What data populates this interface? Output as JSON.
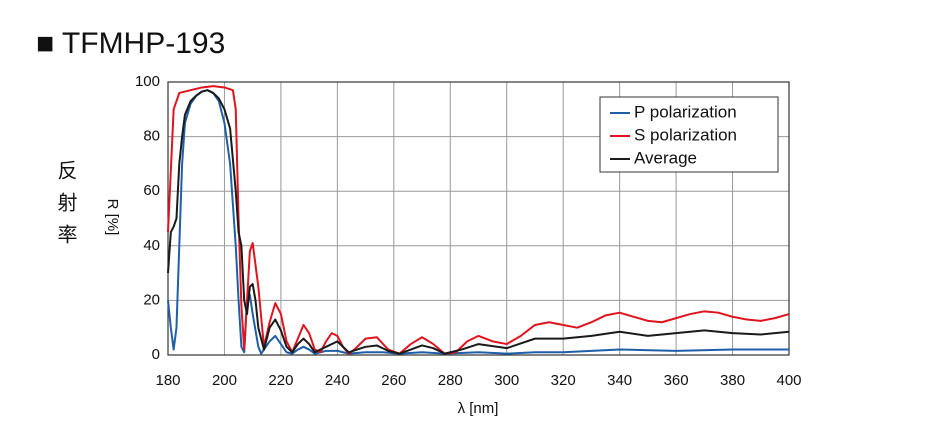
{
  "chart_data": {
    "type": "line",
    "title": "■ TFMHP-193",
    "y_side_label": "反射率",
    "ylabel": "R [%]",
    "xlabel": "λ [nm]",
    "xlim": [
      180,
      400
    ],
    "xticks": [
      180,
      200,
      220,
      240,
      260,
      280,
      300,
      320,
      340,
      360,
      380,
      400
    ],
    "ylim": [
      0,
      100
    ],
    "yticks": [
      0,
      20,
      40,
      60,
      80,
      100
    ],
    "grid": true,
    "legend": "upper right",
    "series": [
      {
        "name": "P polarization",
        "color": "#1f5fa8",
        "x": [
          180,
          181,
          182,
          183,
          184,
          185,
          186,
          188,
          190,
          192,
          194,
          196,
          198,
          200,
          202,
          204,
          205,
          206,
          207,
          208,
          209,
          210,
          212,
          213,
          216,
          218,
          220,
          222,
          224,
          226,
          228,
          230,
          232,
          236,
          240,
          244,
          250,
          256,
          262,
          270,
          278,
          290,
          300,
          310,
          320,
          340,
          360,
          380,
          400
        ],
        "values": [
          20,
          10,
          2,
          10,
          40,
          70,
          85,
          92,
          95,
          96.5,
          97,
          96,
          93,
          85,
          70,
          40,
          20,
          3,
          1,
          20,
          22,
          15,
          3,
          0.5,
          5,
          7,
          4,
          1,
          0.5,
          2,
          3,
          2,
          0.5,
          1.5,
          1.5,
          0.5,
          1,
          1,
          0.5,
          1,
          0.5,
          1,
          0.5,
          1,
          1,
          2,
          1.5,
          2,
          2
        ]
      },
      {
        "name": "S polarization",
        "color": "#e0141e",
        "x": [
          180,
          182,
          184,
          188,
          192,
          196,
          200,
          203,
          204,
          205,
          206,
          207,
          208,
          209,
          210,
          212,
          214,
          216,
          218,
          220,
          222,
          224,
          226,
          228,
          230,
          232,
          234,
          236,
          238,
          240,
          242,
          244,
          246,
          250,
          254,
          258,
          262,
          266,
          270,
          274,
          278,
          282,
          286,
          290,
          295,
          300,
          305,
          310,
          315,
          320,
          325,
          330,
          335,
          340,
          345,
          350,
          355,
          360,
          365,
          370,
          375,
          380,
          385,
          390,
          395,
          400
        ],
        "values": [
          45,
          90,
          96,
          97,
          98,
          98.5,
          98,
          97,
          90,
          50,
          18,
          2,
          20,
          38,
          41,
          25,
          3,
          12,
          19,
          15,
          5,
          1,
          6,
          11,
          8,
          2,
          1,
          5,
          8,
          7,
          3,
          0.5,
          2,
          6,
          6.5,
          2,
          0.5,
          4,
          6.5,
          4,
          0.5,
          1,
          5,
          7,
          5,
          4,
          7,
          11,
          12,
          11,
          10,
          12,
          14.5,
          15.5,
          14,
          12.5,
          12,
          13.5,
          15,
          16,
          15.5,
          14,
          13,
          12.5,
          13.5,
          15
        ]
      },
      {
        "name": "Average",
        "color": "#1a1a1a",
        "x": [
          180,
          181,
          182,
          183,
          184,
          185,
          186,
          188,
          190,
          192,
          194,
          196,
          198,
          200,
          202,
          204,
          205,
          206,
          207,
          208,
          209,
          210,
          211,
          212,
          214,
          216,
          218,
          220,
          222,
          224,
          226,
          228,
          230,
          232,
          236,
          240,
          244,
          250,
          254,
          258,
          262,
          266,
          270,
          274,
          278,
          284,
          290,
          300,
          310,
          320,
          330,
          340,
          350,
          360,
          370,
          380,
          390,
          400
        ],
        "values": [
          30,
          45,
          47,
          50,
          70,
          80,
          88,
          93,
          95,
          96.5,
          97,
          96,
          94,
          90,
          83,
          60,
          45,
          40,
          20,
          15,
          25,
          26,
          20,
          10,
          2,
          10,
          13,
          9,
          3,
          1,
          4,
          6,
          4,
          1,
          3,
          5,
          1,
          3,
          3.5,
          1.5,
          0.5,
          2,
          3.5,
          2.5,
          0.5,
          2,
          4,
          2.5,
          6,
          6,
          7,
          8.5,
          7,
          8,
          9,
          8,
          7.5,
          8.5
        ]
      }
    ]
  }
}
